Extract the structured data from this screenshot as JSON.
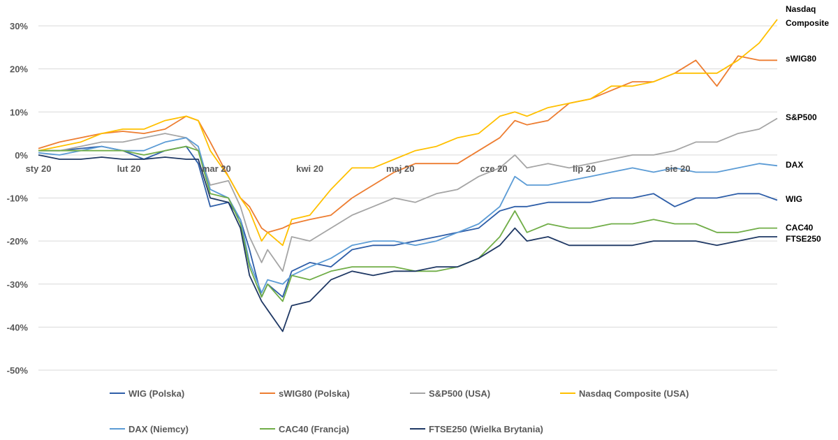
{
  "chart_data": {
    "type": "line",
    "title": "",
    "xlabel": "",
    "ylabel": "",
    "ylim": [
      -50,
      30
    ],
    "yticks": [
      30,
      20,
      10,
      0,
      -10,
      -20,
      -30,
      -40,
      -50
    ],
    "ytick_labels": [
      "30%",
      "20%",
      "10%",
      "0%",
      "-10%",
      "-20%",
      "-30%",
      "-40%",
      "-50%"
    ],
    "x": [
      "2020-01-02",
      "2020-01-09",
      "2020-01-16",
      "2020-01-23",
      "2020-01-30",
      "2020-02-06",
      "2020-02-13",
      "2020-02-20",
      "2020-02-24",
      "2020-02-28",
      "2020-03-05",
      "2020-03-09",
      "2020-03-12",
      "2020-03-16",
      "2020-03-18",
      "2020-03-23",
      "2020-03-26",
      "2020-04-01",
      "2020-04-08",
      "2020-04-15",
      "2020-04-22",
      "2020-04-29",
      "2020-05-06",
      "2020-05-13",
      "2020-05-20",
      "2020-05-27",
      "2020-06-03",
      "2020-06-08",
      "2020-06-12",
      "2020-06-19",
      "2020-06-26",
      "2020-07-03",
      "2020-07-10",
      "2020-07-17",
      "2020-07-24",
      "2020-07-31",
      "2020-08-07",
      "2020-08-14",
      "2020-08-21",
      "2020-08-28",
      "2020-09-03"
    ],
    "xticks": [
      "2020-01-01",
      "2020-02-01",
      "2020-03-01",
      "2020-04-01",
      "2020-05-01",
      "2020-06-01",
      "2020-07-01",
      "2020-08-01"
    ],
    "xtick_labels": [
      "sty 20",
      "lut 20",
      "mar 20",
      "kwi 20",
      "maj 20",
      "cze 20",
      "lip 20",
      "sie 20"
    ],
    "grid": true,
    "legend_position": "bottom",
    "series": [
      {
        "name": "WIG (Polska)",
        "end_label": "WIG",
        "color": "#2e5ea8",
        "values": [
          1,
          1,
          1.5,
          2,
          1,
          -1,
          1,
          2,
          -2,
          -12,
          -11,
          -15,
          -22,
          -33,
          -30,
          -33,
          -27,
          -25,
          -26,
          -22,
          -21,
          -21,
          -20,
          -19,
          -18,
          -17,
          -13,
          -12,
          -12,
          -11,
          -11,
          -11,
          -10,
          -10,
          -9,
          -12,
          -10,
          -10,
          -9,
          -9,
          -10.5
        ]
      },
      {
        "name": "sWIG80 (Polska)",
        "end_label": "sWIG80",
        "color": "#ed7d31",
        "values": [
          1.5,
          3,
          4,
          5,
          5.5,
          5,
          6,
          9,
          8,
          3,
          -5,
          -10,
          -12,
          -17,
          -18,
          -17,
          -16,
          -15,
          -14,
          -10,
          -7,
          -4,
          -2,
          -2,
          -2,
          1,
          4,
          8,
          7,
          8,
          12,
          13,
          15,
          17,
          17,
          19,
          22,
          16,
          23,
          22,
          22
        ]
      },
      {
        "name": "S&P500 (USA)",
        "end_label": "S&P500",
        "color": "#a5a5a5",
        "values": [
          1,
          1,
          2,
          3,
          3,
          4,
          5,
          4,
          1,
          -7,
          -6,
          -12,
          -19,
          -25,
          -22,
          -27,
          -19,
          -20,
          -17,
          -14,
          -12,
          -10,
          -11,
          -9,
          -8,
          -5,
          -3,
          0,
          -3,
          -2,
          -3,
          -2,
          -1,
          0,
          0,
          1,
          3,
          3,
          5,
          6,
          8.5
        ]
      },
      {
        "name": "Nasdaq Composite (USA)",
        "end_label": "Nasdaq\nComposite",
        "color": "#ffc000",
        "values": [
          1,
          2,
          3,
          5,
          6,
          6,
          8,
          9,
          8,
          1,
          -5,
          -10,
          -13,
          -20,
          -18,
          -21,
          -15,
          -14,
          -8,
          -3,
          -3,
          -1,
          1,
          2,
          4,
          5,
          9,
          10,
          9,
          11,
          12,
          13,
          16,
          16,
          17,
          19,
          19,
          19,
          22,
          26,
          31.5
        ]
      },
      {
        "name": "DAX (Niemcy)",
        "end_label": "DAX",
        "color": "#5b9bd5",
        "values": [
          0.5,
          0,
          1,
          2,
          1,
          1,
          3,
          4,
          2,
          -8,
          -10,
          -15,
          -25,
          -32,
          -29,
          -30,
          -28,
          -26,
          -24,
          -21,
          -20,
          -20,
          -21,
          -20,
          -18,
          -16,
          -12,
          -5,
          -7,
          -7,
          -6,
          -5,
          -4,
          -3,
          -4,
          -3,
          -4,
          -4,
          -3,
          -2,
          -2.5
        ]
      },
      {
        "name": "CAC40 (Francja)",
        "end_label": "CAC40",
        "color": "#70ad47",
        "values": [
          1,
          1,
          1,
          1,
          1,
          0,
          1,
          2,
          1,
          -9,
          -10,
          -16,
          -26,
          -33,
          -30,
          -34,
          -28,
          -29,
          -27,
          -26,
          -26,
          -26,
          -27,
          -27,
          -26,
          -24,
          -19,
          -13,
          -18,
          -16,
          -17,
          -17,
          -16,
          -16,
          -15,
          -16,
          -16,
          -18,
          -18,
          -17,
          -17
        ]
      },
      {
        "name": "FTSE250 (Wielka Brytania)",
        "end_label": "FTSE250",
        "color": "#1f3864",
        "values": [
          0,
          -1,
          -1,
          -0.5,
          -1,
          -1,
          -0.5,
          -1,
          -1,
          -10,
          -11,
          -17,
          -28,
          -34,
          -36,
          -41,
          -35,
          -34,
          -29,
          -27,
          -28,
          -27,
          -27,
          -26,
          -26,
          -24,
          -21,
          -17,
          -20,
          -19,
          -21,
          -21,
          -21,
          -21,
          -20,
          -20,
          -20,
          -21,
          -20,
          -19,
          -19
        ]
      }
    ]
  }
}
